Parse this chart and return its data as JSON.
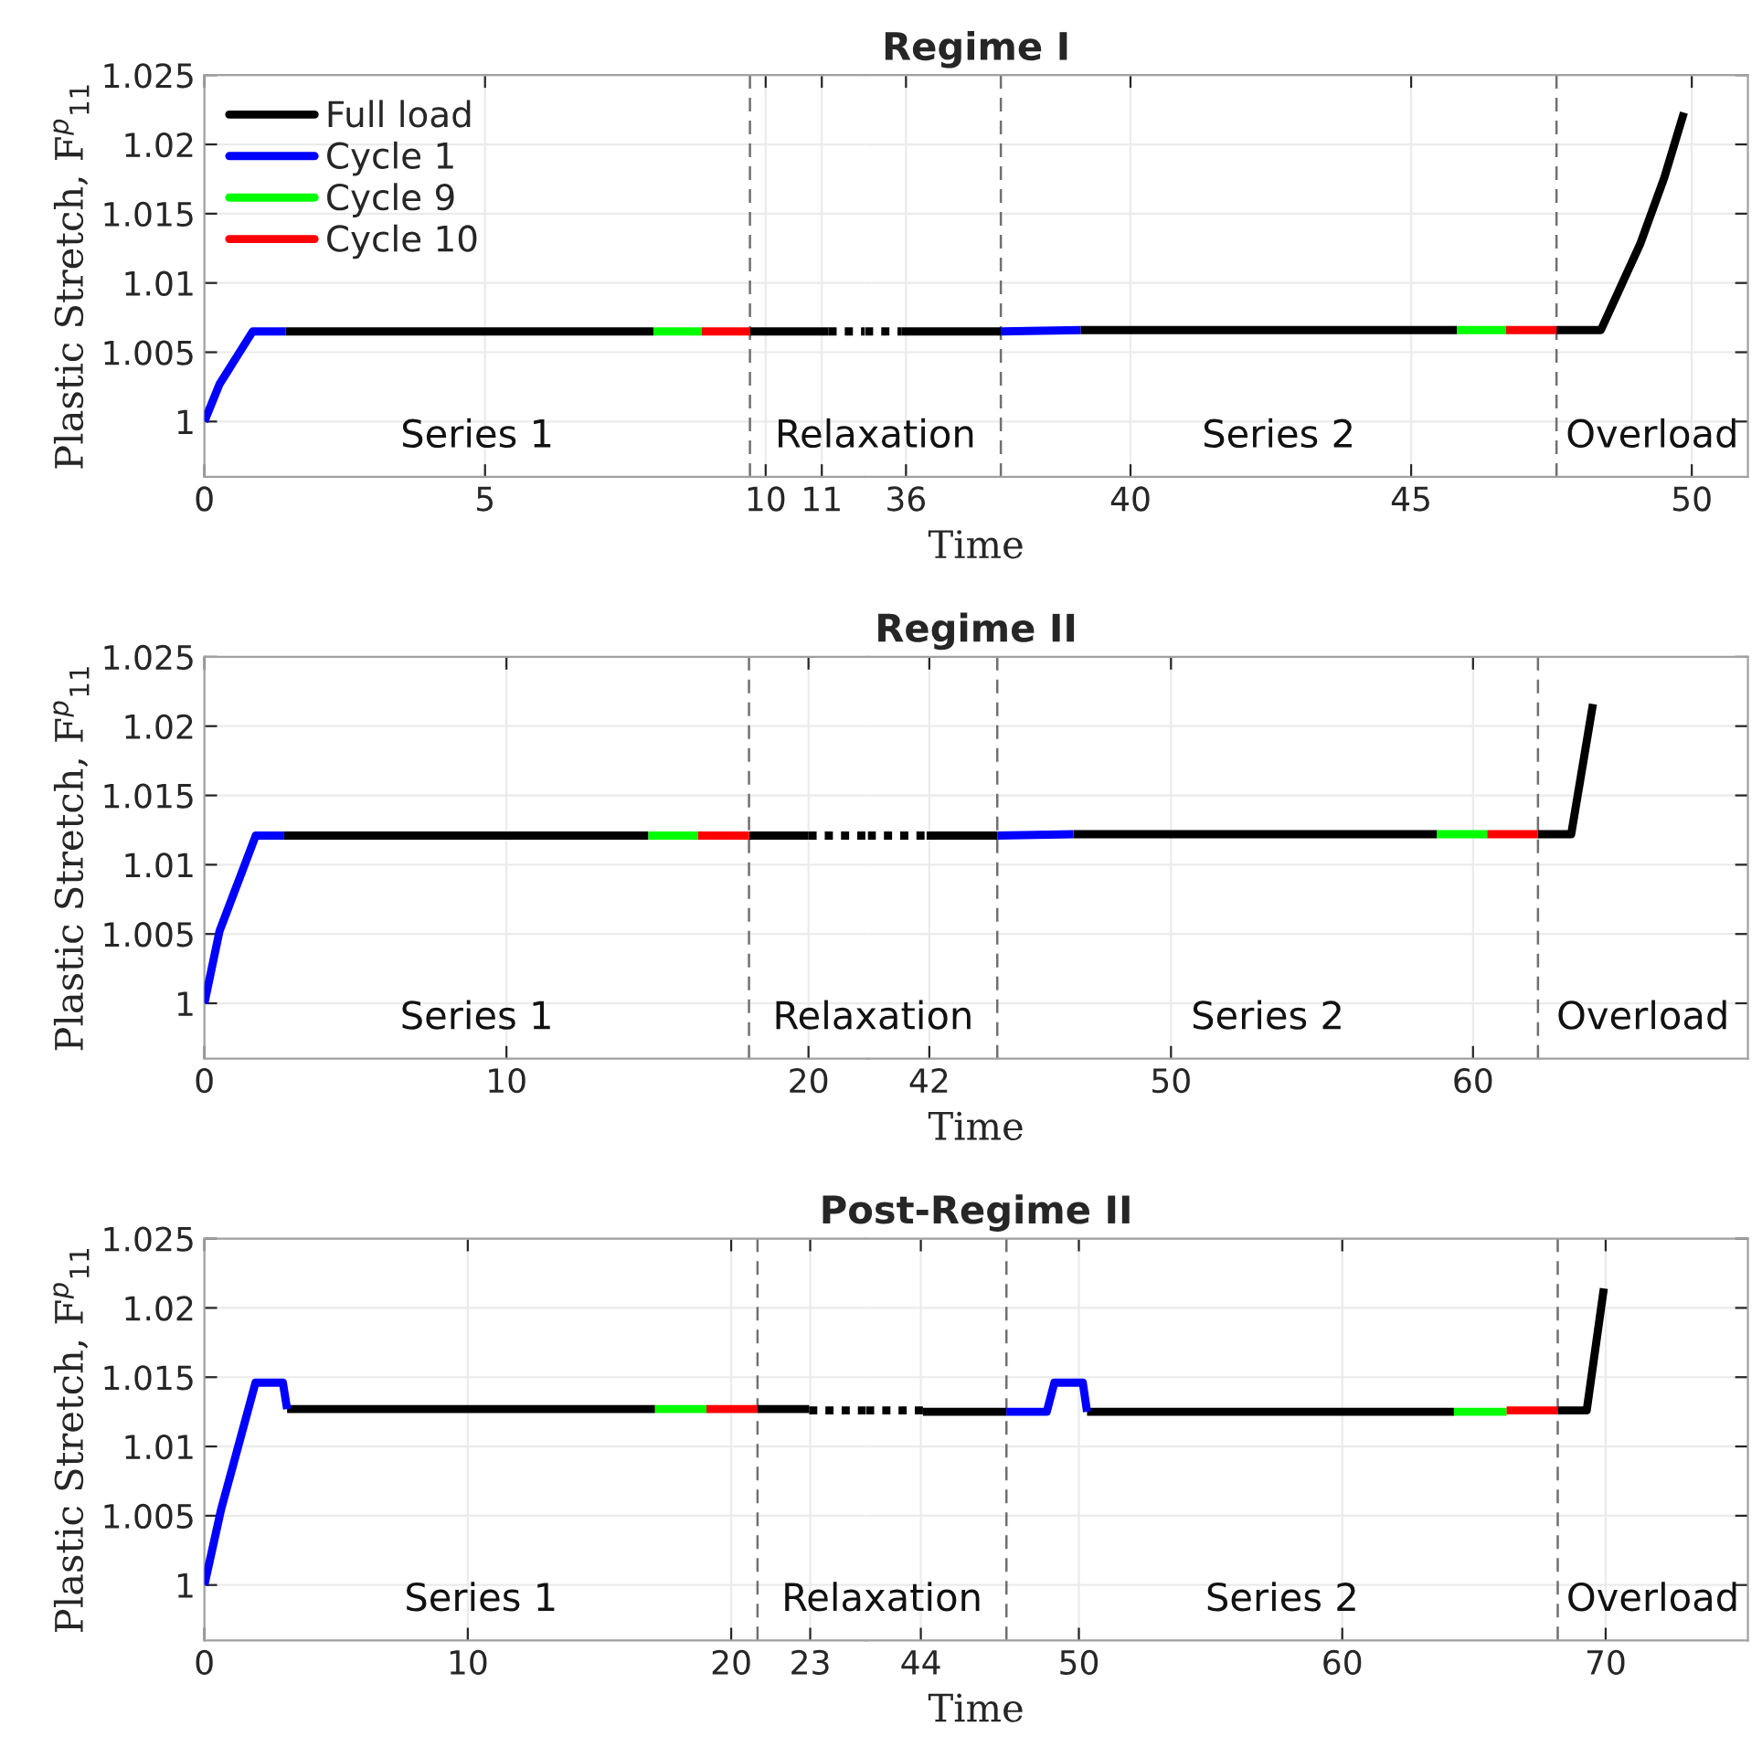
{
  "chart_data": [
    {
      "type": "line",
      "ylabel": "Plastic Stretch, F$^{p}$$_{11}$",
      "xlim": [
        0,
        11.77
      ],
      "ylim": [
        0.996,
        1.025
      ],
      "xticks": [
        0,
        5,
        10,
        11
      ],
      "yticks": [
        1,
        1.005,
        1.01,
        1.015,
        1.02,
        1.025
      ],
      "grid": true,
      "legend": "top left",
      "series": [
        {
          "name": "Full load",
          "color": "#000000",
          "x": [
            1.45,
            8.0,
            8.5,
            9.72,
            11.12
          ],
          "values": [
            1.0065,
            1.0065,
            null,
            1.0065,
            1.0065
          ]
        },
        {
          "color": "#000000",
          "line_style": "dotted",
          "x": [
            11.12,
            11.77
          ],
          "values": [
            1.0065,
            1.0065
          ]
        },
        {
          "name": "Cycle 1",
          "color": "#0000ff",
          "x": [
            0,
            0.27,
            0.86,
            1.45
          ],
          "values": [
            1.0,
            1.0027,
            1.0065,
            1.0065
          ]
        },
        {
          "name": "Cycle 9",
          "color": "#00ff00",
          "x": [
            8.0,
            8.86
          ],
          "values": [
            1.0065,
            1.0065
          ]
        },
        {
          "name": "Cycle 10",
          "color": "#ff0000",
          "x": [
            8.86,
            9.72
          ],
          "values": [
            1.0065,
            1.0065
          ]
        }
      ],
      "ref_lines": [
        {
          "axis": "x",
          "value": 9.72,
          "line_style": "dashed"
        }
      ],
      "annotations": [
        "Series 1"
      ]
    },
    {
      "type": "line",
      "title": "Regime I",
      "xlabel": "Time",
      "xlim": [
        35.27,
        51.0
      ],
      "ylim": [
        0.996,
        1.025
      ],
      "xticks": [
        36,
        40,
        45,
        50
      ],
      "yticks": [
        1,
        1.005,
        1.01,
        1.015,
        1.02,
        1.025
      ],
      "grid": true,
      "tick_labels": "x",
      "series": [
        {
          "color": "#000000",
          "line_style": "dotted",
          "x": [
            35.27,
            35.92
          ],
          "values": [
            1.0065,
            1.0065
          ]
        },
        {
          "color": "#000000",
          "x": [
            35.92,
            37.69,
            38.4,
            39.11,
            45.82,
            46.7,
            47.59,
            48.38,
            49.08,
            49.51,
            49.86
          ],
          "values": [
            1.0065,
            1.0065,
            null,
            1.0066,
            1.0066,
            null,
            1.0066,
            1.0066,
            1.0128,
            1.0176,
            1.0223
          ]
        },
        {
          "color": "#0000ff",
          "x": [
            37.69,
            39.11
          ],
          "values": [
            1.0065,
            1.0066
          ]
        },
        {
          "color": "#00ff00",
          "x": [
            45.82,
            46.69
          ],
          "values": [
            1.0066,
            1.0066
          ]
        },
        {
          "color": "#ff0000",
          "x": [
            46.69,
            47.59
          ],
          "values": [
            1.0066,
            1.0066
          ]
        }
      ],
      "ref_lines": [
        {
          "axis": "x",
          "value": 37.69,
          "line_style": "dashed"
        },
        {
          "axis": "x",
          "value": 47.59,
          "line_style": "dashed"
        }
      ],
      "annotations": [
        "Relaxation",
        "Series 2",
        "Overload"
      ]
    },
    {
      "type": "line",
      "ylabel": "Plastic Stretch, F$^{p}$$_{11}$",
      "xlim": [
        0,
        21.96
      ],
      "ylim": [
        0.996,
        1.025
      ],
      "xticks": [
        0,
        10,
        20
      ],
      "yticks": [
        1,
        1.005,
        1.01,
        1.015,
        1.02,
        1.025
      ],
      "grid": true,
      "series": [
        {
          "color": "#000000",
          "x": [
            2.64,
            14.7,
            15,
            18.03,
            20.0
          ],
          "values": [
            1.0121,
            1.0121,
            null,
            1.0121,
            1.0121
          ]
        },
        {
          "color": "#000000",
          "line_style": "dotted",
          "x": [
            20.0,
            21.96
          ],
          "values": [
            1.0121,
            1.0121
          ]
        },
        {
          "color": "#0000ff",
          "x": [
            0,
            0.5,
            1.7,
            2.64
          ],
          "values": [
            1.0,
            1.0052,
            1.0121,
            1.0121
          ]
        },
        {
          "color": "#00ff00",
          "x": [
            14.7,
            16.34
          ],
          "values": [
            1.0121,
            1.0121
          ]
        },
        {
          "color": "#ff0000",
          "x": [
            16.34,
            18.03
          ],
          "values": [
            1.0121,
            1.0121
          ]
        }
      ],
      "ref_lines": [
        {
          "axis": "x",
          "value": 18.03,
          "line_style": "dashed"
        }
      ],
      "annotations": [
        "Series 1"
      ]
    },
    {
      "type": "line",
      "title": "Regime II",
      "xlabel": "Time",
      "xlim": [
        39.96,
        69.1
      ],
      "ylim": [
        0.996,
        1.025
      ],
      "xticks": [
        42,
        50,
        60
      ],
      "yticks": [
        1,
        1.005,
        1.01,
        1.015,
        1.02,
        1.025
      ],
      "grid": true,
      "tick_labels": "x",
      "series": [
        {
          "color": "#000000",
          "line_style": "dotted",
          "x": [
            39.96,
            41.91
          ],
          "values": [
            1.0121,
            1.0121
          ]
        },
        {
          "color": "#000000",
          "x": [
            41.91,
            44.25,
            45,
            46.77,
            58.81,
            60,
            62.15,
            63.25,
            63.97
          ],
          "values": [
            1.0121,
            1.0121,
            null,
            1.0122,
            1.0122,
            null,
            1.0122,
            1.0122,
            1.0216
          ]
        },
        {
          "color": "#0000ff",
          "x": [
            44.25,
            46.77
          ],
          "values": [
            1.0121,
            1.0122
          ]
        },
        {
          "color": "#00ff00",
          "x": [
            58.81,
            60.47
          ],
          "values": [
            1.0122,
            1.0122
          ]
        },
        {
          "color": "#ff0000",
          "x": [
            60.47,
            62.15
          ],
          "values": [
            1.0122,
            1.0122
          ]
        }
      ],
      "ref_lines": [
        {
          "axis": "x",
          "value": 44.25,
          "line_style": "dashed"
        },
        {
          "axis": "x",
          "value": 62.15,
          "line_style": "dashed"
        }
      ],
      "annotations": [
        "Relaxation",
        "Series 2",
        "Overload"
      ]
    },
    {
      "type": "line",
      "ylabel": "Plastic Stretch, F$^{p}$$_{11}$",
      "xlim": [
        0,
        25.12
      ],
      "ylim": [
        0.996,
        1.025
      ],
      "xticks": [
        0,
        10,
        20,
        23
      ],
      "yticks": [
        1,
        1.005,
        1.01,
        1.015,
        1.02,
        1.025
      ],
      "grid": true,
      "series": [
        {
          "color": "#000000",
          "x": [
            3.14,
            17.11,
            18,
            21.0,
            22.96
          ],
          "values": [
            1.0127,
            1.0127,
            null,
            1.0127,
            1.0127
          ]
        },
        {
          "color": "#000000",
          "line_style": "dotted",
          "x": [
            22.96,
            25.12
          ],
          "values": [
            1.0126,
            1.0126
          ]
        },
        {
          "color": "#0000ff",
          "x": [
            0,
            0.64,
            1.94,
            2.98,
            3.14
          ],
          "values": [
            1.0,
            1.0055,
            1.0146,
            1.0146,
            1.0127
          ]
        },
        {
          "color": "#00ff00",
          "x": [
            17.11,
            19.06
          ],
          "values": [
            1.0127,
            1.0127
          ]
        },
        {
          "color": "#ff0000",
          "x": [
            19.06,
            21.0
          ],
          "values": [
            1.0127,
            1.0127
          ]
        }
      ],
      "ref_lines": [
        {
          "axis": "x",
          "value": 21.0,
          "line_style": "dashed"
        }
      ],
      "annotations": [
        "Series 1"
      ]
    },
    {
      "type": "line",
      "title": "Post-Regime II",
      "xlabel": "Time",
      "xlim": [
        41.92,
        75.4
      ],
      "ylim": [
        0.996,
        1.025
      ],
      "xticks": [
        44,
        50,
        60,
        70
      ],
      "yticks": [
        1,
        1.005,
        1.01,
        1.015,
        1.02,
        1.025
      ],
      "grid": true,
      "tick_labels": "x",
      "series": [
        {
          "color": "#000000",
          "line_style": "dotted",
          "x": [
            41.92,
            44.08
          ],
          "values": [
            1.0126,
            1.0126
          ]
        },
        {
          "color": "#000000",
          "x": [
            44.08,
            47.25,
            48,
            50.31,
            64.24,
            66,
            68.18,
            69.28,
            69.93
          ],
          "values": [
            1.0125,
            1.0125,
            null,
            1.0125,
            1.0125,
            null,
            1.0126,
            1.0126,
            1.0214
          ]
        },
        {
          "color": "#0000ff",
          "x": [
            47.25,
            48.78,
            49.07,
            50.15,
            50.31
          ],
          "values": [
            1.0125,
            1.0125,
            1.0146,
            1.0146,
            1.0125
          ]
        },
        {
          "color": "#00ff00",
          "x": [
            64.24,
            66.24
          ],
          "values": [
            1.0125,
            1.0125
          ]
        },
        {
          "color": "#ff0000",
          "x": [
            66.24,
            68.18
          ],
          "values": [
            1.0126,
            1.0126
          ]
        }
      ],
      "ref_lines": [
        {
          "axis": "x",
          "value": 47.25,
          "line_style": "dashed"
        },
        {
          "axis": "x",
          "value": 68.18,
          "line_style": "dashed"
        }
      ],
      "annotations": [
        "Relaxation",
        "Series 2",
        "Overload"
      ]
    }
  ]
}
